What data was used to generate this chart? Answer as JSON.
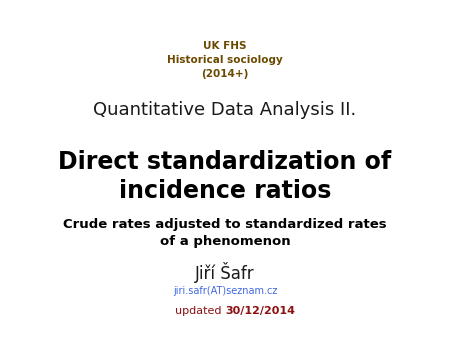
{
  "background_color": "#ffffff",
  "header_line1": "UK FHS",
  "header_line2": "Historical sociology",
  "header_line3": "(2014+)",
  "header_color": "#6B4A00",
  "header_fontsize": 7.5,
  "subtitle": "Quantitative Data Analysis II.",
  "subtitle_fontsize": 13,
  "subtitle_color": "#1a1a1a",
  "title_line1": "Direct standardization of",
  "title_line2": "incidence ratios",
  "title_fontsize": 17,
  "title_color": "#000000",
  "desc_line1": "Crude rates adjusted to standardized rates",
  "desc_line2": "of a phenomenon",
  "desc_fontsize": 9.5,
  "desc_color": "#000000",
  "author": "Jiří Šafr",
  "author_fontsize": 12,
  "author_color": "#1a1a1a",
  "email": "jiri.safr(AT)seznam.cz",
  "email_fontsize": 7,
  "email_color": "#4169E1",
  "updated_prefix": "updated ",
  "updated_bold": "30/12/2014",
  "updated_fontsize": 8,
  "updated_color": "#8B1010"
}
